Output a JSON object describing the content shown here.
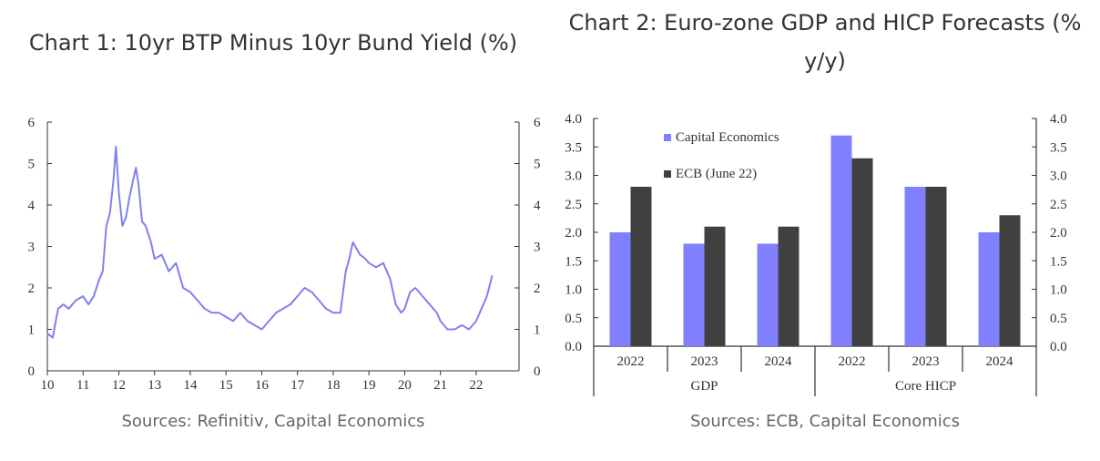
{
  "chart_data": [
    {
      "type": "line",
      "title": "Chart 1: 10yr BTP Minus 10yr Bund Yield (%)",
      "source": "Sources: Refinitiv, Capital Economics",
      "x_tick_labels": [
        "10",
        "11",
        "12",
        "13",
        "14",
        "15",
        "16",
        "17",
        "18",
        "19",
        "20",
        "21",
        "22"
      ],
      "y_ticks": [
        0,
        1,
        2,
        3,
        4,
        5,
        6
      ],
      "xlim": [
        2010,
        2023.2
      ],
      "ylim": [
        0,
        6
      ],
      "series": [
        {
          "color": "#8080f0",
          "x": [
            2010.0,
            2010.15,
            2010.3,
            2010.45,
            2010.6,
            2010.8,
            2011.0,
            2011.15,
            2011.3,
            2011.45,
            2011.55,
            2011.65,
            2011.75,
            2011.85,
            2011.92,
            2012.0,
            2012.1,
            2012.2,
            2012.3,
            2012.4,
            2012.48,
            2012.55,
            2012.65,
            2012.75,
            2012.9,
            2013.0,
            2013.2,
            2013.4,
            2013.6,
            2013.8,
            2014.0,
            2014.2,
            2014.4,
            2014.6,
            2014.8,
            2015.0,
            2015.2,
            2015.4,
            2015.6,
            2015.8,
            2016.0,
            2016.2,
            2016.4,
            2016.6,
            2016.8,
            2017.0,
            2017.2,
            2017.4,
            2017.6,
            2017.8,
            2018.0,
            2018.2,
            2018.35,
            2018.45,
            2018.55,
            2018.75,
            2018.9,
            2019.0,
            2019.2,
            2019.4,
            2019.6,
            2019.75,
            2019.9,
            2020.0,
            2020.15,
            2020.3,
            2020.5,
            2020.7,
            2020.9,
            2021.0,
            2021.2,
            2021.4,
            2021.6,
            2021.8,
            2022.0,
            2022.15,
            2022.3,
            2022.45
          ],
          "y": [
            0.9,
            0.8,
            1.5,
            1.6,
            1.5,
            1.7,
            1.8,
            1.6,
            1.8,
            2.2,
            2.4,
            3.5,
            3.8,
            4.6,
            5.4,
            4.3,
            3.5,
            3.7,
            4.2,
            4.6,
            4.9,
            4.5,
            3.6,
            3.5,
            3.1,
            2.7,
            2.8,
            2.4,
            2.6,
            2.0,
            1.9,
            1.7,
            1.5,
            1.4,
            1.4,
            1.3,
            1.2,
            1.4,
            1.2,
            1.1,
            1.0,
            1.2,
            1.4,
            1.5,
            1.6,
            1.8,
            2.0,
            1.9,
            1.7,
            1.5,
            1.4,
            1.4,
            2.4,
            2.7,
            3.1,
            2.8,
            2.7,
            2.6,
            2.5,
            2.6,
            2.2,
            1.6,
            1.4,
            1.5,
            1.9,
            2.0,
            1.8,
            1.6,
            1.4,
            1.2,
            1.0,
            1.0,
            1.1,
            1.0,
            1.2,
            1.5,
            1.8,
            2.3
          ]
        }
      ]
    },
    {
      "type": "bar",
      "title": "Chart 2: Euro-zone GDP and HICP Forecasts (% y/y)",
      "source": "Sources: ECB, Capital Economics",
      "categories": [
        "2022",
        "2023",
        "2024",
        "2022",
        "2023",
        "2024"
      ],
      "groups": [
        "GDP",
        "Core HICP"
      ],
      "y_ticks": [
        "0.0",
        "0.5",
        "1.0",
        "1.5",
        "2.0",
        "2.5",
        "3.0",
        "3.5",
        "4.0"
      ],
      "ylim": [
        0,
        4
      ],
      "legend_position": "top-left",
      "series": [
        {
          "name": "Capital Economics",
          "color": "#8080ff",
          "values": [
            2.0,
            1.8,
            1.8,
            3.7,
            2.8,
            2.0
          ]
        },
        {
          "name": "ECB (June 22)",
          "color": "#404040",
          "values": [
            2.8,
            2.1,
            2.1,
            3.3,
            2.8,
            2.3
          ]
        }
      ]
    }
  ]
}
